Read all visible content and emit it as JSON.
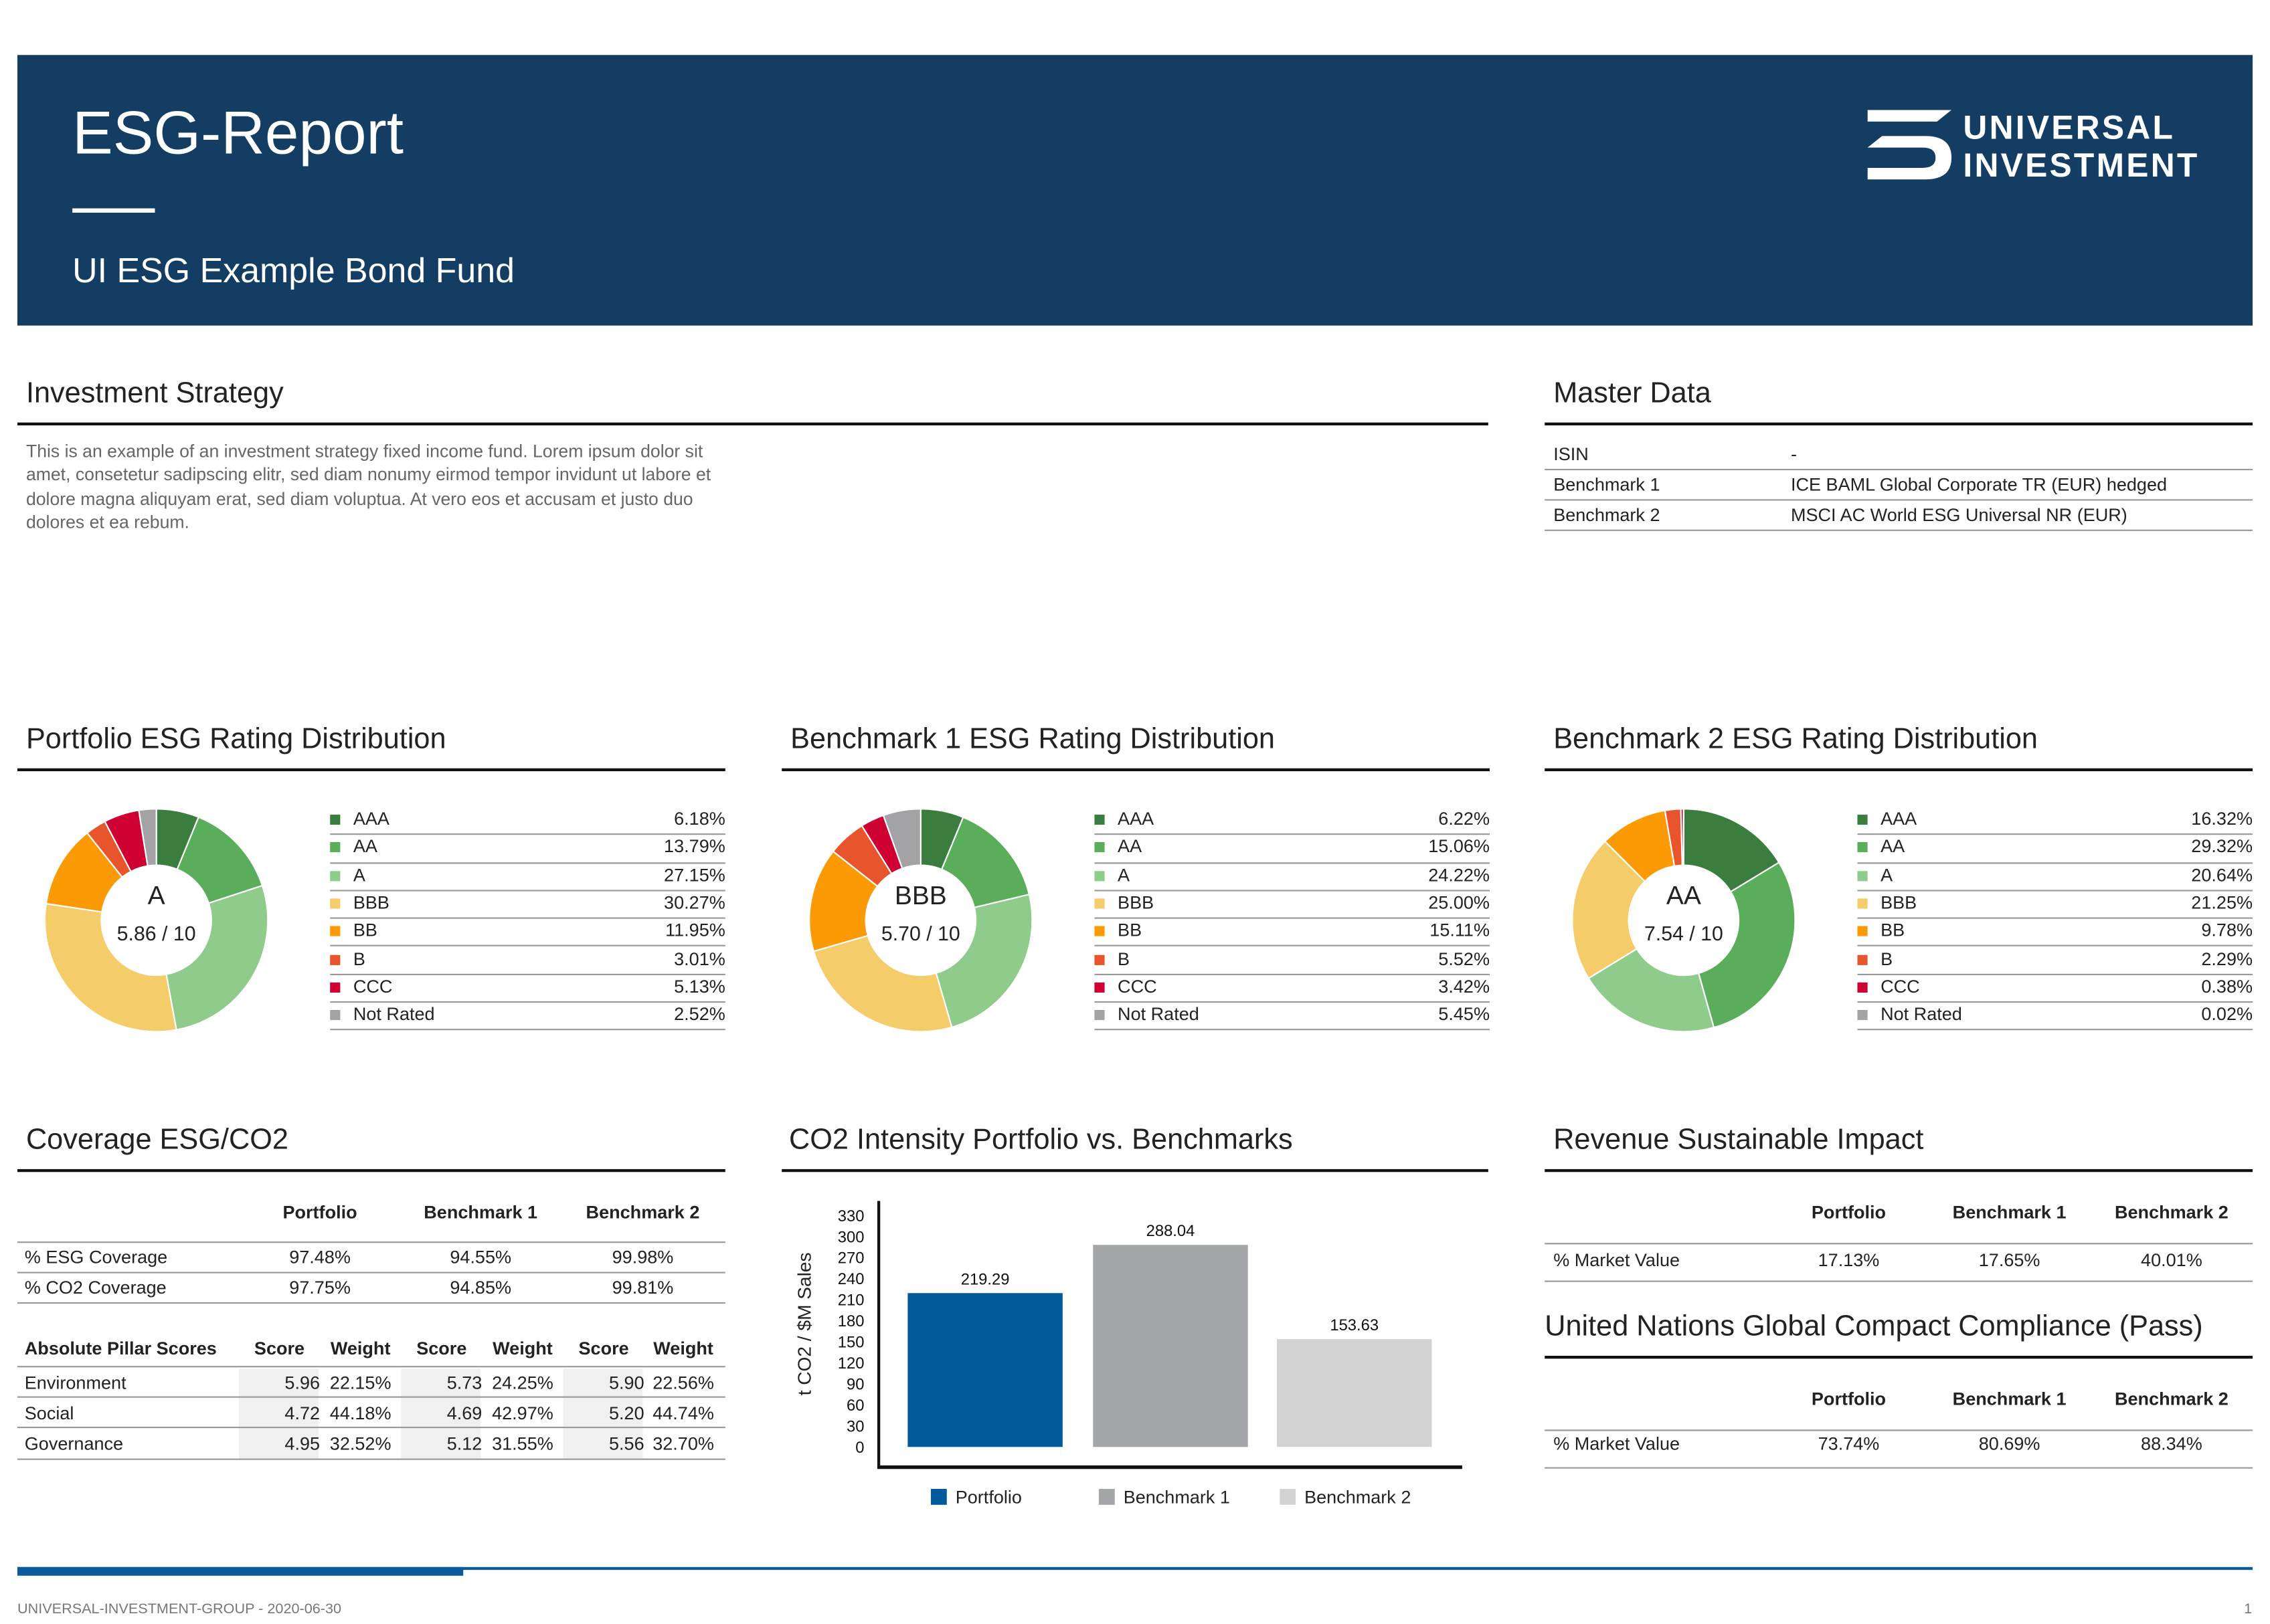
{
  "header": {
    "title": "ESG-Report",
    "subtitle": "UI ESG Example Bond Fund",
    "logo_line1": "UNIVERSAL",
    "logo_line2": "INVESTMENT",
    "background": "#143d63"
  },
  "strategy": {
    "title": "Investment Strategy",
    "text": "This is an example of an investment strategy fixed income fund.  Lorem ipsum dolor sit amet, consetetur sadipscing elitr, sed diam nonumy eirmod tempor invidunt ut labore et dolore magna aliquyam erat, sed diam voluptua. At vero eos et accusam et justo duo dolores et ea rebum."
  },
  "master_data": {
    "title": "Master Data",
    "rows": [
      {
        "label": "ISIN",
        "value": "-"
      },
      {
        "label": "Benchmark 1",
        "value": "ICE BAML Global Corporate TR (EUR) hedged"
      },
      {
        "label": "Benchmark 2",
        "value": "MSCI AC World ESG Universal NR (EUR)"
      }
    ]
  },
  "rating_colors": {
    "AAA": "#3a7d3e",
    "AA": "#5aad5a",
    "A": "#8fcb8a",
    "BBB": "#f4cc6a",
    "BB": "#fb9a05",
    "B": "#e8552c",
    "CCC": "#cf0033",
    "Not Rated": "#a3a3a6"
  },
  "chart_data": [
    {
      "type": "pie",
      "title": "Portfolio ESG Rating Distribution",
      "center_grade": "A",
      "center_score": "5.86 / 10",
      "categories": [
        "AAA",
        "AA",
        "A",
        "BBB",
        "BB",
        "B",
        "CCC",
        "Not Rated"
      ],
      "values": [
        "6.18%",
        "13.79%",
        "27.15%",
        "30.27%",
        "11.95%",
        "3.01%",
        "5.13%",
        "2.52%"
      ]
    },
    {
      "type": "pie",
      "title": "Benchmark 1 ESG Rating Distribution",
      "center_grade": "BBB",
      "center_score": "5.70 / 10",
      "categories": [
        "AAA",
        "AA",
        "A",
        "BBB",
        "BB",
        "B",
        "CCC",
        "Not Rated"
      ],
      "values": [
        "6.22%",
        "15.06%",
        "24.22%",
        "25.00%",
        "15.11%",
        "5.52%",
        "3.42%",
        "5.45%"
      ]
    },
    {
      "type": "pie",
      "title": "Benchmark 2 ESG Rating Distribution",
      "center_grade": "AA",
      "center_score": "7.54 / 10",
      "categories": [
        "AAA",
        "AA",
        "A",
        "BBB",
        "BB",
        "B",
        "CCC",
        "Not Rated"
      ],
      "values": [
        "16.32%",
        "29.32%",
        "20.64%",
        "21.25%",
        "9.78%",
        "2.29%",
        "0.38%",
        "0.02%"
      ]
    },
    {
      "type": "bar",
      "title": "CO2 Intensity Portfolio vs. Benchmarks",
      "ylabel": "t CO2 / $M Sales",
      "xlabel": "",
      "categories": [
        "Portfolio",
        "Benchmark 1",
        "Benchmark 2"
      ],
      "values": [
        219.29,
        288.04,
        153.63
      ],
      "data_labels": [
        "219.29",
        "288.04",
        "153.63"
      ],
      "colors": [
        "#005a9c",
        "#a4a5a8",
        "#d3d3d3"
      ],
      "ylim": [
        0,
        330
      ],
      "yticks": [
        "0",
        "30",
        "60",
        "90",
        "120",
        "150",
        "180",
        "210",
        "240",
        "270",
        "300",
        "330"
      ],
      "grid": false,
      "legend": "bottom"
    }
  ],
  "coverage": {
    "title": "Coverage ESG/CO2",
    "columns": [
      "Portfolio",
      "Benchmark 1",
      "Benchmark 2"
    ],
    "rows": [
      {
        "label": "% ESG Coverage",
        "values": [
          "97.48%",
          "94.55%",
          "99.98%"
        ]
      },
      {
        "label": "% CO2 Coverage",
        "values": [
          "97.75%",
          "94.85%",
          "99.81%"
        ]
      }
    ],
    "pillar": {
      "header": "Absolute Pillar Scores",
      "columns": [
        "Score",
        "Weight",
        "Score",
        "Weight",
        "Score",
        "Weight"
      ],
      "rows": [
        {
          "label": "Environment",
          "values": [
            "5.96",
            "22.15%",
            "5.73",
            "24.25%",
            "5.90",
            "22.56%"
          ]
        },
        {
          "label": "Social",
          "values": [
            "4.72",
            "44.18%",
            "4.69",
            "42.97%",
            "5.20",
            "44.74%"
          ]
        },
        {
          "label": "Governance",
          "values": [
            "4.95",
            "32.52%",
            "5.12",
            "31.55%",
            "5.56",
            "32.70%"
          ]
        }
      ]
    }
  },
  "revenue": {
    "title": "Revenue Sustainable Impact",
    "columns": [
      "Portfolio",
      "Benchmark 1",
      "Benchmark 2"
    ],
    "rows": [
      {
        "label": "% Market Value",
        "values": [
          "17.13%",
          "17.65%",
          "40.01%"
        ]
      }
    ]
  },
  "ungc": {
    "title": "United Nations Global Compact Compliance (Pass)",
    "columns": [
      "Portfolio",
      "Benchmark 1",
      "Benchmark 2"
    ],
    "rows": [
      {
        "label": "% Market Value",
        "values": [
          "73.74%",
          "80.69%",
          "88.34%"
        ]
      }
    ]
  },
  "footer": {
    "text": "UNIVERSAL-INVESTMENT-GROUP - 2020-06-30",
    "page": "1"
  }
}
